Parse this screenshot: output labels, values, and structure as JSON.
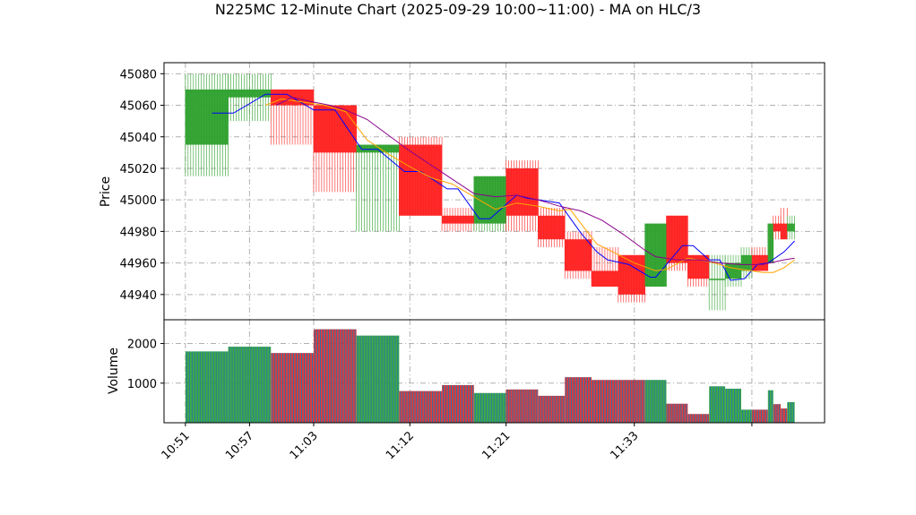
{
  "chart_data": {
    "type": "candlestick",
    "title": "N225MC 12-Minute Chart (2025-09-29 10:00~11:00) - MA on HLC/3",
    "subplots": [
      {
        "name": "price",
        "ylabel": "Price",
        "ylim": [
          44924,
          45087
        ],
        "yticks": [
          44940,
          44960,
          44980,
          45000,
          45020,
          45040,
          45060,
          45080
        ]
      },
      {
        "name": "volume",
        "ylabel": "Volume",
        "ylim": [
          0,
          2600
        ],
        "yticks": [
          1000,
          2000
        ]
      }
    ],
    "x_tick_labels": [
      "10:51",
      "10:57",
      "11:03",
      "11:12",
      "11:21",
      "11:33"
    ],
    "x_tick_positions": [
      0,
      6,
      12,
      21,
      30,
      42
    ],
    "x_last_index": 53,
    "grid": true,
    "colors": {
      "up": "#2ca02c",
      "down": "#ff1f1f",
      "ma_fast": "#0000ff",
      "ma_mid": "#ffa500",
      "ma_slow": "#8b008b",
      "volume_a": "#1f77b4",
      "volume_up": "#2ca02c",
      "volume_down": "#d62728"
    },
    "candles": [
      {
        "i0": 0,
        "i1": 4,
        "open": 45035,
        "high": 45080,
        "low": 45015,
        "close": 45070,
        "volume": 1800
      },
      {
        "i0": 4,
        "i1": 8,
        "open": 45065,
        "high": 45080,
        "low": 45050,
        "close": 45070,
        "volume": 1920
      },
      {
        "i0": 8,
        "i1": 12,
        "open": 45070,
        "high": 45070,
        "low": 45035,
        "close": 45060,
        "volume": 1760
      },
      {
        "i0": 12,
        "i1": 16,
        "open": 45060,
        "high": 45060,
        "low": 45005,
        "close": 45030,
        "volume": 2360
      },
      {
        "i0": 16,
        "i1": 20,
        "open": 45030,
        "high": 45035,
        "low": 44980,
        "close": 45035,
        "volume": 2200
      },
      {
        "i0": 20,
        "i1": 24,
        "open": 45035,
        "high": 45040,
        "low": 44990,
        "close": 44990,
        "volume": 800
      },
      {
        "i0": 24,
        "i1": 27,
        "open": 44990,
        "high": 44995,
        "low": 44980,
        "close": 44985,
        "volume": 950
      },
      {
        "i0": 27,
        "i1": 30,
        "open": 44985,
        "high": 45015,
        "low": 44980,
        "close": 45015,
        "volume": 750
      },
      {
        "i0": 30,
        "i1": 33,
        "open": 45020,
        "high": 45025,
        "low": 44980,
        "close": 44990,
        "volume": 840
      },
      {
        "i0": 33,
        "i1": 35.5,
        "open": 44990,
        "high": 44995,
        "low": 44970,
        "close": 44975,
        "volume": 680
      },
      {
        "i0": 35.5,
        "i1": 38,
        "open": 44975,
        "high": 44980,
        "low": 44950,
        "close": 44955,
        "volume": 1150
      },
      {
        "i0": 38,
        "i1": 40.5,
        "open": 44955,
        "high": 44970,
        "low": 44945,
        "close": 44945,
        "volume": 1080
      },
      {
        "i0": 40.5,
        "i1": 43,
        "open": 44965,
        "high": 44965,
        "low": 44935,
        "close": 44940,
        "volume": 1080
      },
      {
        "i0": 43,
        "i1": 45,
        "open": 44945,
        "high": 44985,
        "low": 44945,
        "close": 44985,
        "volume": 1080
      },
      {
        "i0": 45,
        "i1": 47,
        "open": 44990,
        "high": 44990,
        "low": 44955,
        "close": 44960,
        "volume": 480
      },
      {
        "i0": 47,
        "i1": 49,
        "open": 44965,
        "high": 44965,
        "low": 44945,
        "close": 44950,
        "volume": 220
      },
      {
        "i0": 49,
        "i1": 50.5,
        "open": 44950,
        "high": 44965,
        "low": 44930,
        "close": 44950,
        "volume": 920
      },
      {
        "i0": 50.5,
        "i1": 52,
        "open": 44950,
        "high": 44965,
        "low": 44945,
        "close": 44960,
        "volume": 860
      },
      {
        "i0": 52,
        "i1": 53,
        "open": 44955,
        "high": 44970,
        "low": 44950,
        "close": 44965,
        "volume": 330
      },
      {
        "i0": 53,
        "i1": 54.5,
        "open": 44965,
        "high": 44970,
        "low": 44955,
        "close": 44955,
        "volume": 330
      },
      {
        "i0": 54.5,
        "i1": 55,
        "open": 44960,
        "high": 44985,
        "low": 44960,
        "close": 44985,
        "volume": 820
      },
      {
        "i0": 55,
        "i1": 55.7,
        "open": 44985,
        "high": 44990,
        "low": 44975,
        "close": 44980,
        "volume": 470
      },
      {
        "i0": 55.7,
        "i1": 56.3,
        "open": 44985,
        "high": 44995,
        "low": 44975,
        "close": 44975,
        "volume": 360
      },
      {
        "i0": 56.3,
        "i1": 57,
        "open": 44980,
        "high": 44990,
        "low": 44975,
        "close": 44985,
        "volume": 520
      }
    ],
    "series": [
      {
        "color": "#0000ff",
        "points": [
          [
            2.5,
            45055
          ],
          [
            4.5,
            45055
          ],
          [
            7.5,
            45067
          ],
          [
            9.5,
            45067
          ],
          [
            12,
            45057
          ],
          [
            14,
            45057
          ],
          [
            16.5,
            45032
          ],
          [
            18,
            45032
          ],
          [
            20.5,
            45018
          ],
          [
            22,
            45018
          ],
          [
            24.5,
            45007
          ],
          [
            25.5,
            45007
          ],
          [
            27.5,
            44988
          ],
          [
            28.5,
            44988
          ],
          [
            31,
            45003
          ],
          [
            32,
            45001
          ],
          [
            34,
            44999
          ],
          [
            35,
            44998
          ],
          [
            37,
            44979
          ],
          [
            38.5,
            44967
          ],
          [
            39.5,
            44962
          ],
          [
            41.5,
            44959
          ],
          [
            43.5,
            44951
          ],
          [
            44,
            44951
          ],
          [
            46.5,
            44971
          ],
          [
            47.5,
            44971
          ],
          [
            49,
            44962
          ],
          [
            50,
            44962
          ],
          [
            51,
            44949
          ],
          [
            52.3,
            44950
          ],
          [
            53.5,
            44959
          ],
          [
            54.5,
            44960
          ],
          [
            56,
            44967
          ],
          [
            57,
            44974
          ]
        ]
      },
      {
        "color": "#ffa500",
        "points": [
          [
            7.5,
            45060
          ],
          [
            9,
            45064
          ],
          [
            11,
            45062
          ],
          [
            13,
            45060
          ],
          [
            15,
            45056
          ],
          [
            17,
            45038
          ],
          [
            19,
            45029
          ],
          [
            21,
            45021
          ],
          [
            23,
            45014
          ],
          [
            25,
            45010
          ],
          [
            27,
            45002
          ],
          [
            29,
            44994
          ],
          [
            31,
            44998
          ],
          [
            33,
            44996
          ],
          [
            35,
            44993
          ],
          [
            36,
            44994
          ],
          [
            37,
            44985
          ],
          [
            38.5,
            44972
          ],
          [
            40,
            44967
          ],
          [
            42,
            44960
          ],
          [
            44,
            44955
          ],
          [
            45,
            44956
          ],
          [
            47,
            44963
          ],
          [
            48,
            44962
          ],
          [
            49.5,
            44960
          ],
          [
            51,
            44957
          ],
          [
            52,
            44956
          ],
          [
            53,
            44955
          ],
          [
            54,
            44954
          ],
          [
            55,
            44954
          ],
          [
            56,
            44957
          ],
          [
            57,
            44962
          ]
        ]
      },
      {
        "color": "#8b008b",
        "points": [
          [
            8.5,
            45060
          ],
          [
            10,
            45065
          ],
          [
            12,
            45062
          ],
          [
            13.5,
            45060
          ],
          [
            15,
            45057
          ],
          [
            17,
            45051
          ],
          [
            19,
            45041
          ],
          [
            21,
            45031
          ],
          [
            23,
            45022
          ],
          [
            25,
            45013
          ],
          [
            27,
            45004
          ],
          [
            29,
            45002
          ],
          [
            31,
            45003
          ],
          [
            33,
            45000
          ],
          [
            35,
            44996
          ],
          [
            37,
            44993
          ],
          [
            39,
            44987
          ],
          [
            41,
            44978
          ],
          [
            43,
            44968
          ],
          [
            44,
            44964
          ],
          [
            46,
            44962
          ],
          [
            48,
            44962
          ],
          [
            50,
            44960
          ],
          [
            52,
            44959
          ],
          [
            54,
            44959
          ],
          [
            56,
            44962
          ],
          [
            57,
            44963
          ]
        ]
      }
    ]
  }
}
